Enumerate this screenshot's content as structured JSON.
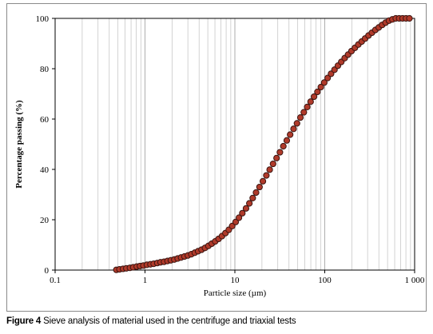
{
  "chart_data": {
    "type": "scatter",
    "xscale": "log",
    "xlim": [
      0.1,
      1000
    ],
    "ylim": [
      0,
      100
    ],
    "xlabel": "Particle size (µm)",
    "ylabel": "Percentage passing (%)",
    "xtick_labels": [
      "0.1",
      "1",
      "10",
      "100",
      "1 000"
    ],
    "ytick_labels": [
      "0",
      "20",
      "40",
      "60",
      "80",
      "100"
    ],
    "grid": "vertical minor and major lines on log x axis",
    "marker_color": "#b03a2a",
    "marker_edge": "#3a1410",
    "series": [
      {
        "x": [
          0.48,
          0.52,
          0.57,
          0.62,
          0.68,
          0.74,
          0.81,
          0.88,
          0.96,
          1.05,
          1.15,
          1.25,
          1.37,
          1.49,
          1.63,
          1.78,
          1.94,
          2.12,
          2.31,
          2.52,
          2.75,
          3.0,
          3.28,
          3.58,
          3.9,
          4.26,
          4.65,
          5.07,
          5.53,
          6.04,
          6.59,
          7.19,
          7.85,
          8.56,
          9.34,
          10.2,
          11.1,
          12.1,
          13.3,
          14.5,
          15.8,
          17.2,
          18.8,
          20.5,
          22.4,
          24.4,
          26.6,
          29.1,
          31.7,
          34.6,
          37.8,
          41.2,
          45.0,
          49.1,
          53.6,
          58.5,
          63.8,
          69.6,
          76.0,
          82.9,
          90.5,
          98.7,
          107.7,
          117.5,
          128.3,
          140.0,
          152.7,
          166.6,
          181.8,
          198.4,
          216.5,
          236.3,
          257.8,
          281.4,
          307.0,
          335.0,
          365.6,
          398.9,
          435.3,
          475.0,
          518.3,
          565.6,
          617.2,
          673.5,
          734.9,
          802.0,
          875.1
        ],
        "y": [
          0.1,
          0.3,
          0.5,
          0.7,
          0.9,
          1.1,
          1.4,
          1.6,
          1.8,
          2.1,
          2.3,
          2.5,
          2.8,
          3.1,
          3.3,
          3.6,
          3.9,
          4.2,
          4.6,
          5.0,
          5.4,
          5.8,
          6.3,
          6.9,
          7.5,
          8.1,
          8.8,
          9.6,
          10.5,
          11.4,
          12.4,
          13.5,
          14.7,
          16.0,
          17.5,
          19.1,
          20.8,
          22.6,
          24.5,
          26.5,
          28.6,
          30.8,
          33.0,
          35.3,
          37.6,
          39.9,
          42.2,
          44.5,
          46.8,
          49.2,
          51.5,
          53.8,
          56.1,
          58.3,
          60.6,
          62.7,
          64.8,
          66.9,
          68.9,
          70.8,
          72.7,
          74.5,
          76.3,
          78.0,
          79.6,
          81.2,
          82.7,
          84.2,
          85.6,
          87.0,
          88.3,
          89.6,
          90.8,
          92.0,
          93.2,
          94.3,
          95.4,
          96.4,
          97.4,
          98.3,
          99.1,
          99.6,
          100.0,
          100.0,
          100.0,
          100.0,
          100.0
        ]
      }
    ]
  },
  "caption": {
    "label": "Figure 4",
    "text": " Sieve analysis of material used in the centrifuge and triaxial tests"
  }
}
